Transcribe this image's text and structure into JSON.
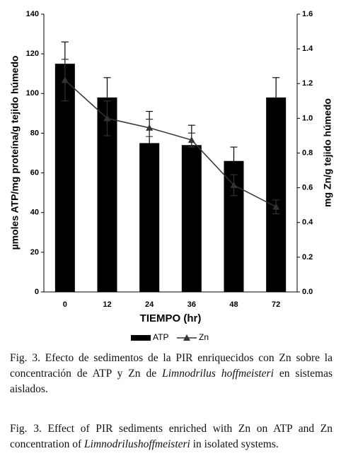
{
  "chart_data": {
    "type": "bar",
    "y_label": "µmoles ATP/mg proteína/g tejido húmedo",
    "y2_label": "mg Zn/g tejido húmedo",
    "x_label": "TIEMPO (hr)",
    "categories": [
      "0",
      "12",
      "24",
      "36",
      "48",
      "72"
    ],
    "series": [
      {
        "name": "ATP",
        "type": "bar",
        "color": "#000000",
        "values": [
          115,
          98,
          75,
          74,
          66,
          98
        ],
        "errors": [
          11,
          10,
          16,
          10,
          7,
          10
        ]
      },
      {
        "name": "Zn",
        "type": "line",
        "axis": "y2",
        "color": "#333333",
        "values": [
          1.22,
          1.0,
          0.945,
          0.875,
          0.615,
          0.49
        ],
        "errors": [
          0.12,
          0.1,
          0.05,
          0.04,
          0.06,
          0.04
        ]
      }
    ],
    "ylim": [
      0,
      140
    ],
    "yticks": [
      0,
      20,
      40,
      60,
      80,
      100,
      120,
      140
    ],
    "y2lim": [
      0,
      1.6
    ],
    "y2ticks": [
      {
        "value": 0,
        "label": "0.0"
      },
      0.2,
      0.4,
      0.6,
      0.8,
      {
        "value": 1,
        "label": "1.0"
      },
      1.2,
      1.4,
      1.6
    ],
    "legend": "bottom"
  },
  "captions": [
    [
      "Fig. 3. Efecto de sedimentos de la PIR enriquecidos con Zn sobre la concentración de ATP y Zn de ",
      "Limnodrilus hoffmeisteri",
      " en sistemas aislados."
    ],
    [
      "Fig. 3. Effect of PIR sediments enriched with Zn on ATP and Zn concentration of ",
      "Limnodrilushoffmeisteri",
      " in isolated systems."
    ]
  ]
}
